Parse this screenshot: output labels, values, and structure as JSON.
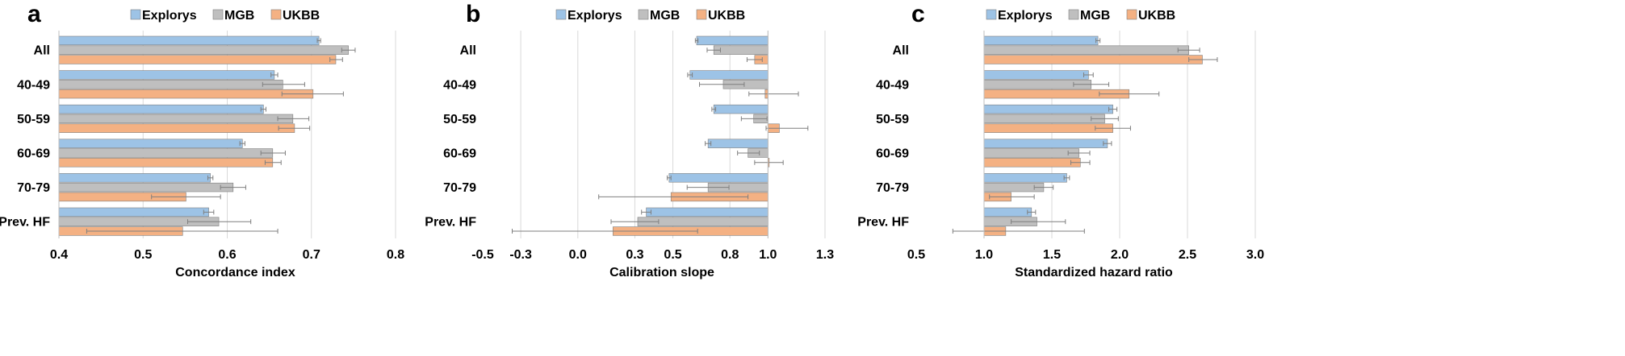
{
  "chart_data": [
    {
      "type": "bar",
      "orientation": "horizontal",
      "panel_label": "a",
      "xlabel": "Concordance index",
      "xlim": [
        0.4,
        0.8
      ],
      "xticks": [
        0.4,
        0.5,
        0.6,
        0.7,
        0.8
      ],
      "xtick_labels": [
        "0.4",
        "0.5",
        "0.6",
        "0.7",
        "0.8"
      ],
      "reference": 0.4,
      "grid": true,
      "legend_position": "top",
      "categories": [
        "All",
        "40-49",
        "50-59",
        "60-69",
        "70-79",
        "Prev. HF"
      ],
      "series": [
        {
          "name": "Explorys",
          "color": "#9dc3e6",
          "values": [
            0.709,
            0.656,
            0.643,
            0.618,
            0.58,
            0.578
          ],
          "err_low": [
            0.707,
            0.652,
            0.64,
            0.615,
            0.577,
            0.572
          ],
          "err_high": [
            0.711,
            0.66,
            0.646,
            0.621,
            0.583,
            0.584
          ]
        },
        {
          "name": "MGB",
          "color": "#bfbfbf",
          "values": [
            0.744,
            0.666,
            0.678,
            0.654,
            0.607,
            0.59
          ],
          "err_low": [
            0.736,
            0.642,
            0.66,
            0.64,
            0.592,
            0.553
          ],
          "err_high": [
            0.752,
            0.692,
            0.697,
            0.669,
            0.622,
            0.628
          ]
        },
        {
          "name": "UKBB",
          "color": "#f4b183",
          "values": [
            0.729,
            0.702,
            0.68,
            0.654,
            0.551,
            0.547
          ],
          "err_low": [
            0.722,
            0.665,
            0.661,
            0.645,
            0.51,
            0.433
          ],
          "err_high": [
            0.737,
            0.738,
            0.698,
            0.664,
            0.592,
            0.66
          ]
        }
      ]
    },
    {
      "type": "bar",
      "orientation": "horizontal",
      "panel_label": "b",
      "xlabel": "Calibration slope",
      "xlim": [
        -0.5,
        1.3
      ],
      "xticks": [
        -0.5,
        -0.3,
        0.0,
        0.3,
        0.5,
        0.8,
        1.0,
        1.3
      ],
      "xtick_labels": [
        "-0.5",
        "-0.3",
        "0.0",
        "0.3",
        "0.5",
        "0.8",
        "1.0",
        "1.3"
      ],
      "reference": 1.0,
      "grid": true,
      "legend_position": "top",
      "categories": [
        "All",
        "40-49",
        "50-59",
        "60-69",
        "70-79",
        "Prev. HF"
      ],
      "series": [
        {
          "name": "Explorys",
          "color": "#9dc3e6",
          "values": [
            0.625,
            0.59,
            0.715,
            0.685,
            0.48,
            0.36
          ],
          "err_low": [
            0.618,
            0.578,
            0.705,
            0.67,
            0.47,
            0.335
          ],
          "err_high": [
            0.632,
            0.602,
            0.725,
            0.7,
            0.49,
            0.385
          ]
        },
        {
          "name": "MGB",
          "color": "#bfbfbf",
          "values": [
            0.715,
            0.765,
            0.925,
            0.895,
            0.685,
            0.315
          ],
          "err_low": [
            0.68,
            0.64,
            0.86,
            0.84,
            0.575,
            0.175
          ],
          "err_high": [
            0.75,
            0.875,
            0.995,
            0.955,
            0.795,
            0.425
          ]
        },
        {
          "name": "UKBB",
          "color": "#f4b183",
          "values": [
            0.93,
            0.985,
            1.06,
            1.005,
            0.49,
            0.185
          ],
          "err_low": [
            0.89,
            0.9,
            0.99,
            0.93,
            0.11,
            -0.345
          ],
          "err_high": [
            0.97,
            1.16,
            1.21,
            1.08,
            0.895,
            0.63
          ]
        }
      ]
    },
    {
      "type": "bar",
      "orientation": "horizontal",
      "panel_label": "c",
      "xlabel": "Standardized hazard ratio",
      "xlim": [
        0.5,
        3.0
      ],
      "xticks": [
        0.5,
        1.0,
        1.5,
        2.0,
        2.5,
        3.0
      ],
      "xtick_labels": [
        "0.5",
        "1.0",
        "1.5",
        "2.0",
        "2.5",
        "3.0"
      ],
      "reference": 1.0,
      "grid": true,
      "legend_position": "top",
      "categories": [
        "All",
        "40-49",
        "50-59",
        "60-69",
        "70-79",
        "Prev. HF"
      ],
      "series": [
        {
          "name": "Explorys",
          "color": "#9dc3e6",
          "values": [
            1.84,
            1.77,
            1.95,
            1.91,
            1.61,
            1.35
          ],
          "err_low": [
            1.825,
            1.735,
            1.92,
            1.88,
            1.59,
            1.32
          ],
          "err_high": [
            1.855,
            1.805,
            1.98,
            1.94,
            1.63,
            1.38
          ]
        },
        {
          "name": "MGB",
          "color": "#bfbfbf",
          "values": [
            2.51,
            1.79,
            1.89,
            1.7,
            1.44,
            1.39
          ],
          "err_low": [
            2.43,
            1.66,
            1.79,
            1.62,
            1.37,
            1.2
          ],
          "err_high": [
            2.59,
            1.92,
            1.99,
            1.78,
            1.51,
            1.6
          ]
        },
        {
          "name": "UKBB",
          "color": "#f4b183",
          "values": [
            2.61,
            2.07,
            1.95,
            1.71,
            1.2,
            1.16
          ],
          "err_low": [
            2.51,
            1.85,
            1.82,
            1.64,
            1.04,
            0.77
          ],
          "err_high": [
            2.72,
            2.29,
            2.08,
            1.78,
            1.37,
            1.74
          ]
        }
      ]
    }
  ]
}
